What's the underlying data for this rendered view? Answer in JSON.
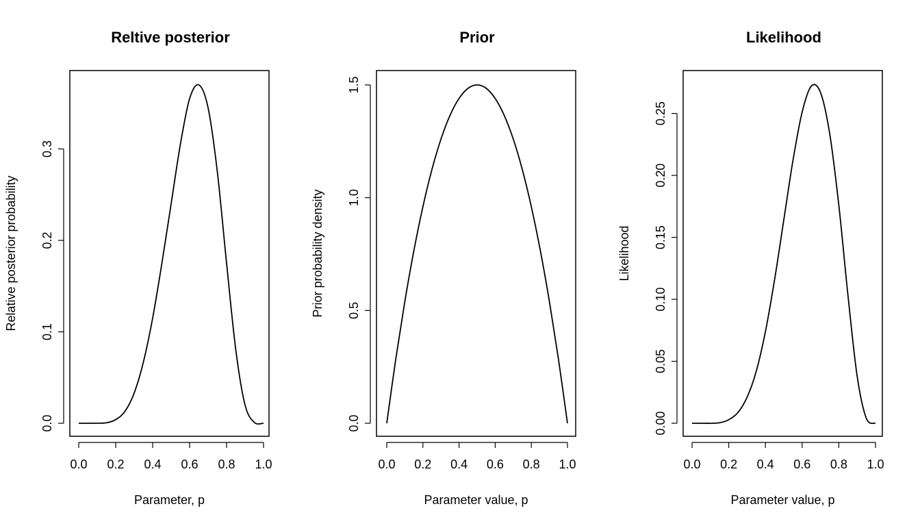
{
  "chart_data": [
    {
      "type": "line",
      "title": "Reltive posterior",
      "xlabel": "Parameter, p",
      "ylabel": "Relative posterior probability",
      "xlim": [
        0,
        1
      ],
      "ylim": [
        0,
        0.37
      ],
      "xticks": [
        0,
        0.2,
        0.4,
        0.6,
        0.8,
        1
      ],
      "xtick_labels": [
        "0.0",
        "0.2",
        "0.4",
        "0.6",
        "0.8",
        "1.0"
      ],
      "yticks": [
        0,
        0.1,
        0.2,
        0.3
      ],
      "ytick_labels": [
        "0.0",
        "0.1",
        "0.2",
        "0.3"
      ],
      "grid": false,
      "series": [
        {
          "x": [
            0,
            0.05,
            0.1,
            0.15,
            0.2,
            0.25,
            0.3,
            0.35,
            0.4,
            0.45,
            0.5,
            0.55,
            0.6,
            0.65,
            0.7,
            0.75,
            0.8,
            0.85,
            0.9,
            0.95,
            1
          ],
          "values": [
            0,
            0,
            0.0001,
            0.0005,
            0.004,
            0.013,
            0.033,
            0.067,
            0.115,
            0.175,
            0.24,
            0.305,
            0.355,
            0.37,
            0.345,
            0.275,
            0.175,
            0.08,
            0.02,
            0.001,
            0
          ]
        }
      ]
    },
    {
      "type": "line",
      "title": "Prior",
      "xlabel": "Parameter value, p",
      "ylabel": "Prior probability density",
      "xlim": [
        0,
        1
      ],
      "ylim": [
        0,
        1.5
      ],
      "xticks": [
        0,
        0.2,
        0.4,
        0.6,
        0.8,
        1
      ],
      "xtick_labels": [
        "0.0",
        "0.2",
        "0.4",
        "0.6",
        "0.8",
        "1.0"
      ],
      "yticks": [
        0,
        0.5,
        1,
        1.5
      ],
      "ytick_labels": [
        "0.0",
        "0.5",
        "1.0",
        "1.5"
      ],
      "grid": false,
      "series": [
        {
          "x": [
            0,
            0.05,
            0.1,
            0.15,
            0.2,
            0.25,
            0.3,
            0.35,
            0.4,
            0.45,
            0.5,
            0.55,
            0.6,
            0.65,
            0.7,
            0.75,
            0.8,
            0.85,
            0.9,
            0.95,
            1
          ],
          "values": [
            0,
            0.285,
            0.54,
            0.765,
            0.96,
            1.125,
            1.26,
            1.365,
            1.44,
            1.485,
            1.5,
            1.485,
            1.44,
            1.365,
            1.26,
            1.125,
            0.96,
            0.765,
            0.54,
            0.285,
            0
          ]
        }
      ]
    },
    {
      "type": "line",
      "title": "Likelihood",
      "xlabel": "Parameter value, p",
      "ylabel": "Likelihood",
      "xlim": [
        0,
        1
      ],
      "ylim": [
        0,
        0.273
      ],
      "xticks": [
        0,
        0.2,
        0.4,
        0.6,
        0.8,
        1
      ],
      "xtick_labels": [
        "0.0",
        "0.2",
        "0.4",
        "0.6",
        "0.8",
        "1.0"
      ],
      "yticks": [
        0,
        0.05,
        0.1,
        0.15,
        0.2,
        0.25
      ],
      "ytick_labels": [
        "0.00",
        "0.05",
        "0.10",
        "0.15",
        "0.20",
        "0.25"
      ],
      "grid": false,
      "series": [
        {
          "x": [
            0,
            0.05,
            0.1,
            0.15,
            0.2,
            0.25,
            0.3,
            0.35,
            0.4,
            0.45,
            0.5,
            0.55,
            0.6,
            0.65,
            0.7,
            0.75,
            0.8,
            0.85,
            0.9,
            0.95,
            1
          ],
          "values": [
            0,
            0,
            0,
            0.0004,
            0.0028,
            0.0087,
            0.021,
            0.042,
            0.074,
            0.116,
            0.164,
            0.212,
            0.251,
            0.272,
            0.267,
            0.234,
            0.176,
            0.103,
            0.038,
            0.004,
            0
          ]
        }
      ]
    }
  ]
}
